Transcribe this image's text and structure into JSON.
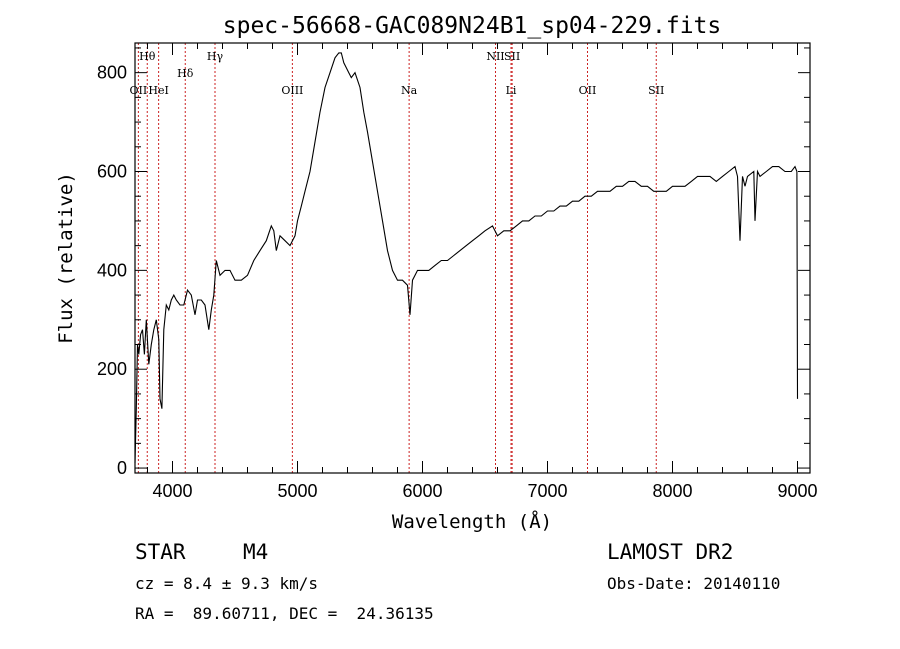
{
  "chart_data": {
    "type": "line",
    "title": "spec-56668-GAC089N24B1_sp04-229.fits",
    "xlabel": "Wavelength (Å)",
    "ylabel": "Flux (relative)",
    "xlim": [
      3700,
      9100
    ],
    "ylim": [
      -10,
      860
    ],
    "xticks": [
      4000,
      5000,
      6000,
      7000,
      8000,
      9000
    ],
    "yticks": [
      0,
      200,
      400,
      600,
      800
    ],
    "grid": false,
    "line_color": "#000000",
    "marker_color": "#cc2222",
    "lines": [
      {
        "label": "Hθ",
        "wavelength": 3798
      },
      {
        "label": "OII",
        "wavelength": 3727
      },
      {
        "label": "HeI",
        "wavelength": 3889
      },
      {
        "label": "Hδ",
        "wavelength": 4102
      },
      {
        "label": "Hγ",
        "wavelength": 4340
      },
      {
        "label": "OIII",
        "wavelength": 4959
      },
      {
        "label": "Na",
        "wavelength": 5893
      },
      {
        "label": "NII",
        "wavelength": 6584
      },
      {
        "label": "SII",
        "wavelength": 6717
      },
      {
        "label": "Li",
        "wavelength": 6708
      },
      {
        "label": "OII",
        "wavelength": 7320
      },
      {
        "label": "SII",
        "wavelength": 7870
      }
    ],
    "x": [
      3700,
      3710,
      3720,
      3730,
      3745,
      3760,
      3775,
      3790,
      3810,
      3830,
      3850,
      3870,
      3890,
      3900,
      3915,
      3930,
      3950,
      3970,
      3990,
      4010,
      4030,
      4060,
      4090,
      4120,
      4150,
      4180,
      4200,
      4230,
      4260,
      4290,
      4310,
      4330,
      4350,
      4380,
      4420,
      4460,
      4500,
      4550,
      4600,
      4650,
      4700,
      4750,
      4790,
      4810,
      4830,
      4860,
      4900,
      4940,
      4980,
      5000,
      5030,
      5060,
      5100,
      5140,
      5180,
      5220,
      5260,
      5300,
      5330,
      5350,
      5370,
      5390,
      5410,
      5430,
      5460,
      5500,
      5530,
      5560,
      5600,
      5640,
      5680,
      5720,
      5760,
      5800,
      5840,
      5880,
      5900,
      5920,
      5960,
      6000,
      6050,
      6100,
      6150,
      6200,
      6250,
      6300,
      6350,
      6400,
      6450,
      6500,
      6560,
      6600,
      6650,
      6700,
      6750,
      6800,
      6850,
      6900,
      6950,
      7000,
      7050,
      7100,
      7150,
      7200,
      7250,
      7300,
      7350,
      7400,
      7450,
      7500,
      7550,
      7600,
      7650,
      7700,
      7750,
      7800,
      7850,
      7900,
      7950,
      8000,
      8050,
      8100,
      8150,
      8200,
      8250,
      8300,
      8350,
      8400,
      8450,
      8500,
      8520,
      8540,
      8560,
      8580,
      8600,
      8650,
      8660,
      8680,
      8700,
      8750,
      8800,
      8850,
      8900,
      8950,
      8980,
      8995,
      9000
    ],
    "y": [
      10,
      120,
      250,
      230,
      270,
      280,
      230,
      300,
      210,
      250,
      280,
      300,
      260,
      140,
      120,
      280,
      330,
      320,
      340,
      350,
      340,
      330,
      330,
      360,
      350,
      310,
      340,
      340,
      330,
      280,
      320,
      350,
      420,
      390,
      400,
      400,
      380,
      380,
      390,
      420,
      440,
      460,
      490,
      480,
      440,
      470,
      460,
      450,
      470,
      500,
      530,
      560,
      600,
      660,
      720,
      770,
      800,
      830,
      840,
      840,
      820,
      810,
      800,
      790,
      800,
      770,
      720,
      680,
      620,
      560,
      500,
      440,
      400,
      380,
      380,
      370,
      310,
      380,
      400,
      400,
      400,
      410,
      420,
      420,
      430,
      440,
      450,
      460,
      470,
      480,
      490,
      470,
      480,
      480,
      490,
      500,
      500,
      510,
      510,
      520,
      520,
      530,
      530,
      540,
      540,
      550,
      550,
      560,
      560,
      560,
      570,
      570,
      580,
      580,
      570,
      570,
      560,
      560,
      560,
      570,
      570,
      570,
      580,
      590,
      590,
      590,
      580,
      590,
      600,
      610,
      590,
      460,
      590,
      570,
      590,
      600,
      500,
      600,
      590,
      600,
      610,
      610,
      600,
      600,
      610,
      600,
      140
    ]
  },
  "info": {
    "object_class": "STAR",
    "subclass": "M4",
    "survey": "LAMOST DR2",
    "cz": "cz = 8.4 ± 9.3 km/s",
    "obs_date": "Obs-Date: 20140110",
    "coords": "RA =  89.60711, DEC =  24.36135"
  }
}
